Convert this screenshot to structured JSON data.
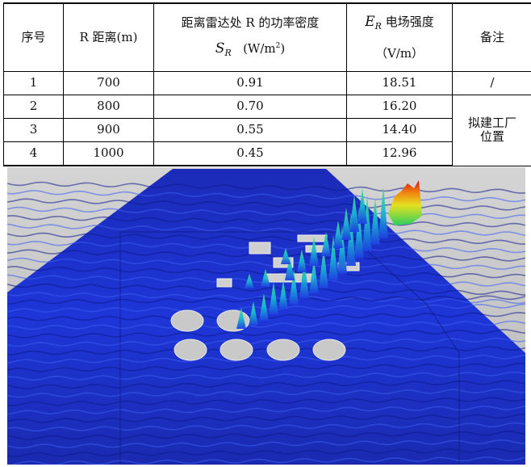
{
  "table": {
    "headers": {
      "index": "序号",
      "distance": "R 距离(m)",
      "power_title": "距离雷达处 R 的功率密度",
      "power_symbol": "S",
      "power_sub": "R",
      "power_unit_pre": "(W/m",
      "power_unit_sup": "2",
      "power_unit_post": ")",
      "field_symbol": "E",
      "field_sub": "R",
      "field_title": " 电场强度",
      "field_unit": "（V/m）",
      "note": "备注"
    },
    "rows": [
      {
        "index": "1",
        "distance": "700",
        "power": "0.91",
        "field": "18.51",
        "note": "/"
      },
      {
        "index": "2",
        "distance": "800",
        "power": "0.70",
        "field": "16.20"
      },
      {
        "index": "3",
        "distance": "900",
        "power": "0.55",
        "field": "14.40"
      },
      {
        "index": "4",
        "distance": "1000",
        "power": "0.45",
        "field": "12.96"
      }
    ],
    "merged_note_line1": "拟建工厂",
    "merged_note_line2": "位置"
  },
  "plot": {
    "background_color": "#c8c8c8",
    "field_low_color": "#1a2fd6",
    "field_high_color": "#e8200a"
  }
}
